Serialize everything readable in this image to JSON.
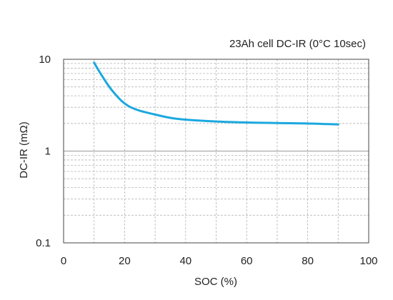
{
  "chart_data": {
    "type": "line",
    "title": "23Ah cell DC-IR (0°C 10sec)",
    "xlabel": "SOC (%)",
    "ylabel": "DC-IR (mΩ)",
    "xlim": [
      0,
      100
    ],
    "ylim": [
      0.1,
      10
    ],
    "yscale": "log",
    "grid": true,
    "x_ticks": [
      0,
      20,
      40,
      60,
      80,
      100
    ],
    "x_tick_labels": [
      "0",
      "20",
      "40",
      "60",
      "80",
      "100"
    ],
    "y_ticks": [
      0.1,
      1,
      10
    ],
    "y_tick_labels": [
      "0.1",
      "1",
      "10"
    ],
    "series": [
      {
        "color": "#1ba8df",
        "x": [
          10,
          12,
          15,
          18,
          20,
          22,
          25,
          30,
          35,
          40,
          50,
          60,
          70,
          80,
          90
        ],
        "y": [
          9.2,
          7.1,
          5.0,
          3.8,
          3.3,
          3.0,
          2.75,
          2.5,
          2.3,
          2.2,
          2.1,
          2.05,
          2.02,
          2.0,
          1.95
        ]
      }
    ]
  }
}
